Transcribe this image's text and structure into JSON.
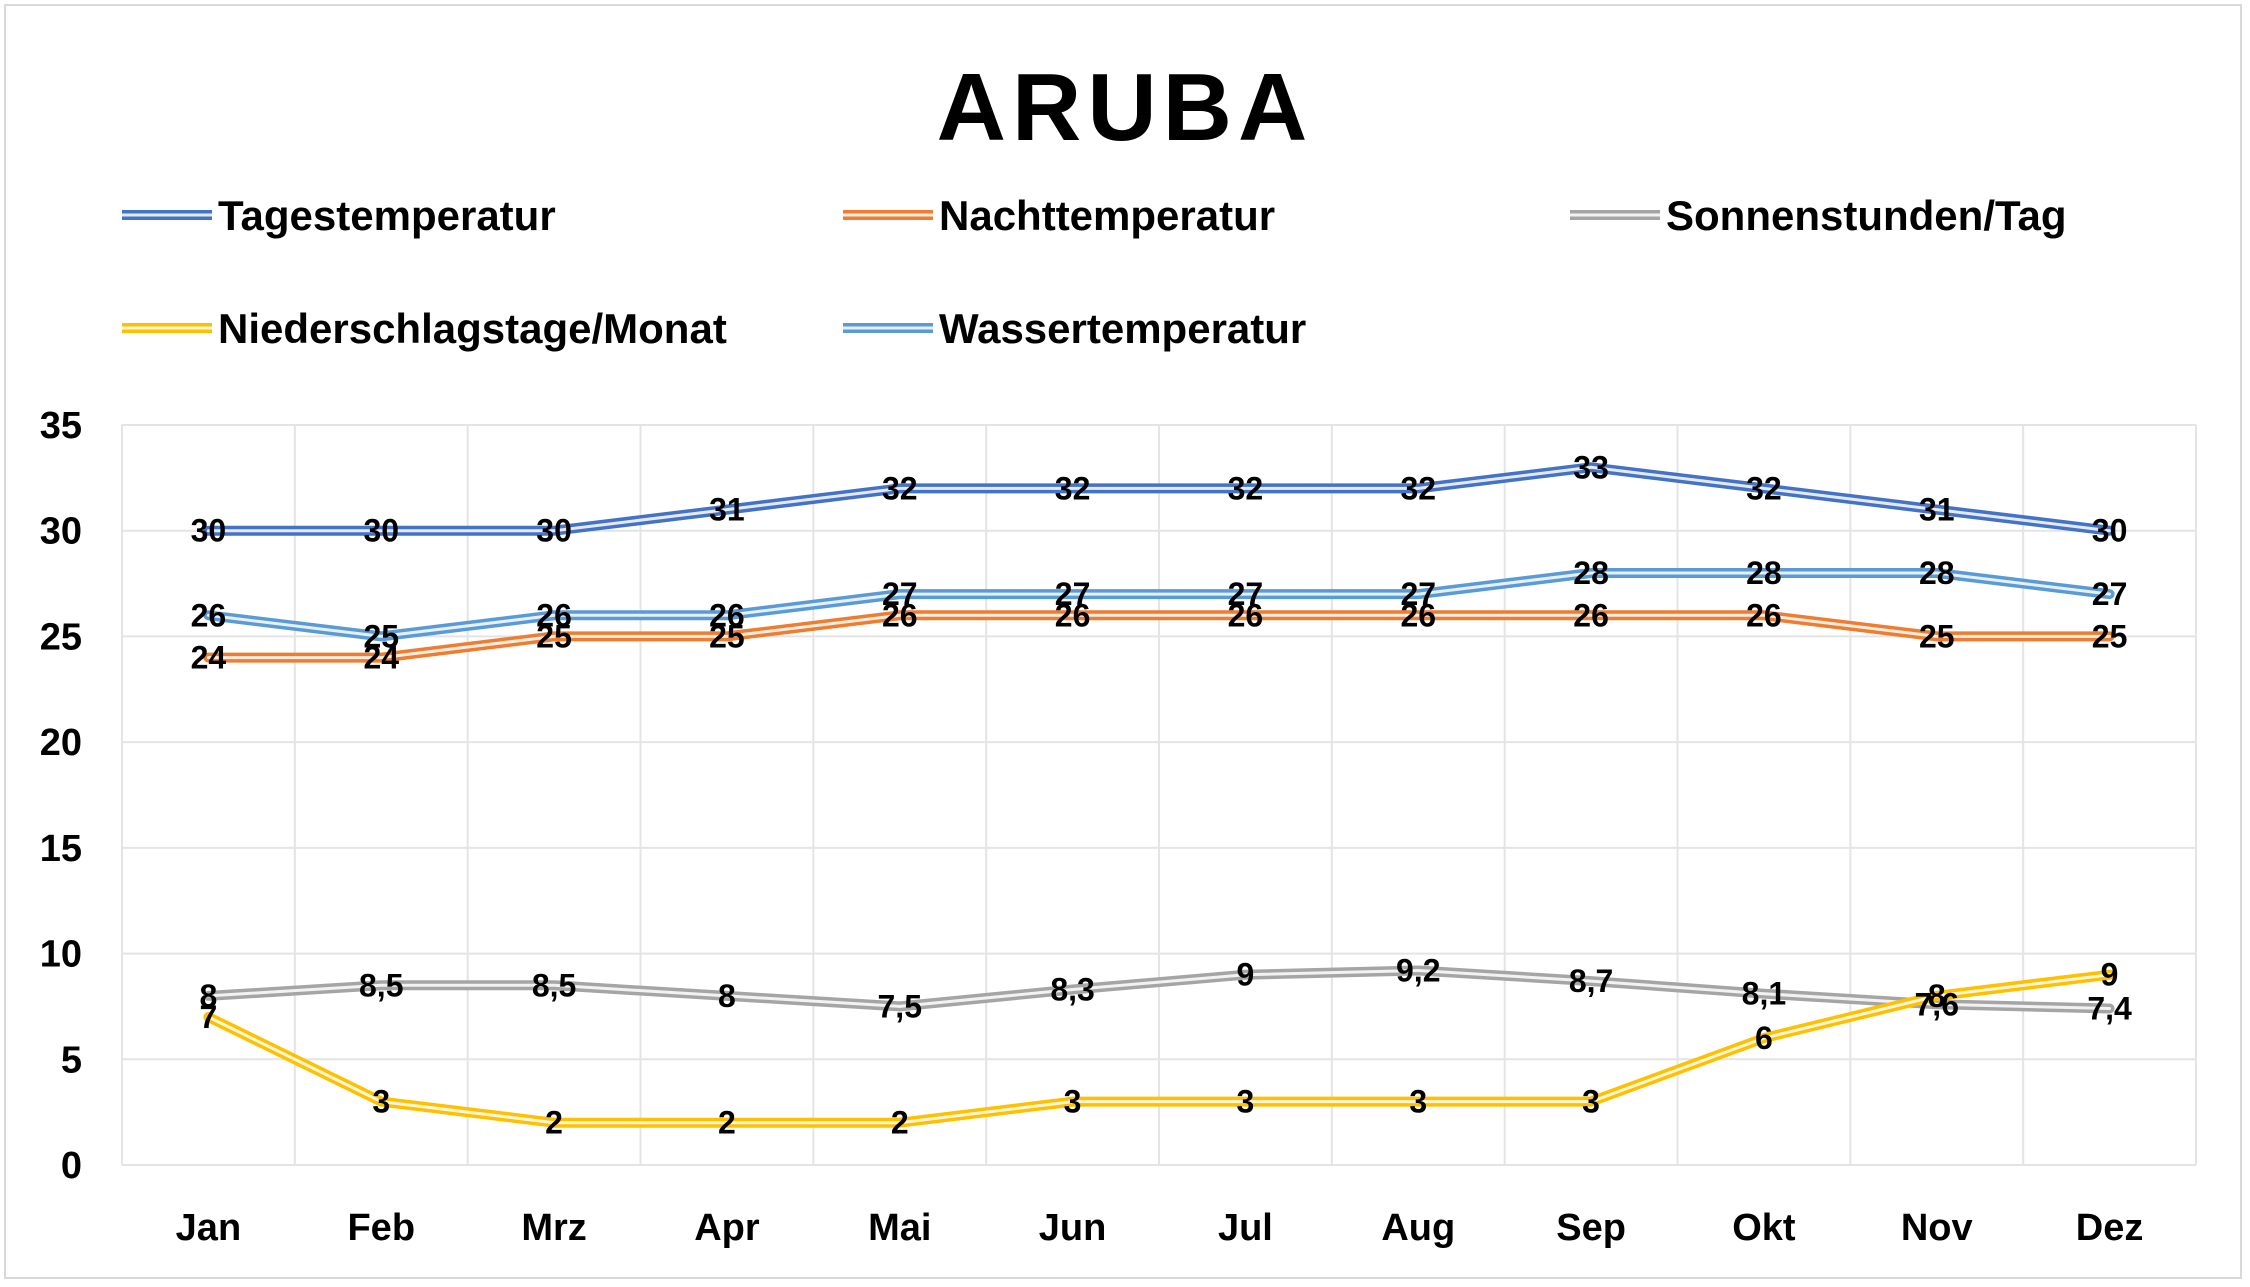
{
  "chart_data": {
    "type": "line",
    "title": "ARUBA",
    "xlabel": "",
    "ylabel": "",
    "ylim": [
      0,
      35
    ],
    "yticks": [
      0,
      5,
      10,
      15,
      20,
      25,
      30,
      35
    ],
    "ytick_labels": [
      "0",
      "5",
      "10",
      "15",
      "20",
      "25",
      "30",
      "35"
    ],
    "grid": true,
    "legend_position": "top",
    "categories": [
      "Jan",
      "Feb",
      "Mrz",
      "Apr",
      "Mai",
      "Jun",
      "Jul",
      "Aug",
      "Sep",
      "Okt",
      "Nov",
      "Dez"
    ],
    "series": [
      {
        "name": "Tagestemperatur",
        "color": "#4472c4",
        "values": [
          30,
          30,
          30,
          31,
          32,
          32,
          32,
          32,
          33,
          32,
          31,
          30
        ],
        "labels": [
          "30",
          "30",
          "30",
          "31",
          "32",
          "32",
          "32",
          "32",
          "33",
          "32",
          "31",
          "30"
        ]
      },
      {
        "name": "Nachttemperatur",
        "color": "#ed7d31",
        "values": [
          24,
          24,
          25,
          25,
          26,
          26,
          26,
          26,
          26,
          26,
          25,
          25
        ],
        "labels": [
          "24",
          "24",
          "25",
          "25",
          "26",
          "26",
          "26",
          "26",
          "26",
          "26",
          "25",
          "25"
        ]
      },
      {
        "name": "Sonnenstunden/Tag",
        "color": "#a5a5a5",
        "values": [
          8,
          8.5,
          8.5,
          8,
          7.5,
          8.3,
          9,
          9.2,
          8.7,
          8.1,
          7.6,
          7.4
        ],
        "labels": [
          "8",
          "8,5",
          "8,5",
          "8",
          "7,5",
          "8,3",
          "9",
          "9,2",
          "8,7",
          "8,1",
          "7,6",
          "7,4"
        ]
      },
      {
        "name": "Niederschlagstage/Monat",
        "color": "#ffc000",
        "values": [
          7,
          3,
          2,
          2,
          2,
          3,
          3,
          3,
          3,
          6,
          8,
          9
        ],
        "labels": [
          "7",
          "3",
          "2",
          "2",
          "2",
          "3",
          "3",
          "3",
          "3",
          "6",
          "8",
          "9"
        ]
      },
      {
        "name": "Wassertemperatur",
        "color": "#5b9bd5",
        "values": [
          26,
          25,
          26,
          26,
          27,
          27,
          27,
          27,
          28,
          28,
          28,
          27
        ],
        "labels": [
          "26",
          "25",
          "26",
          "26",
          "27",
          "27",
          "27",
          "27",
          "28",
          "28",
          "28",
          "27"
        ]
      }
    ]
  }
}
